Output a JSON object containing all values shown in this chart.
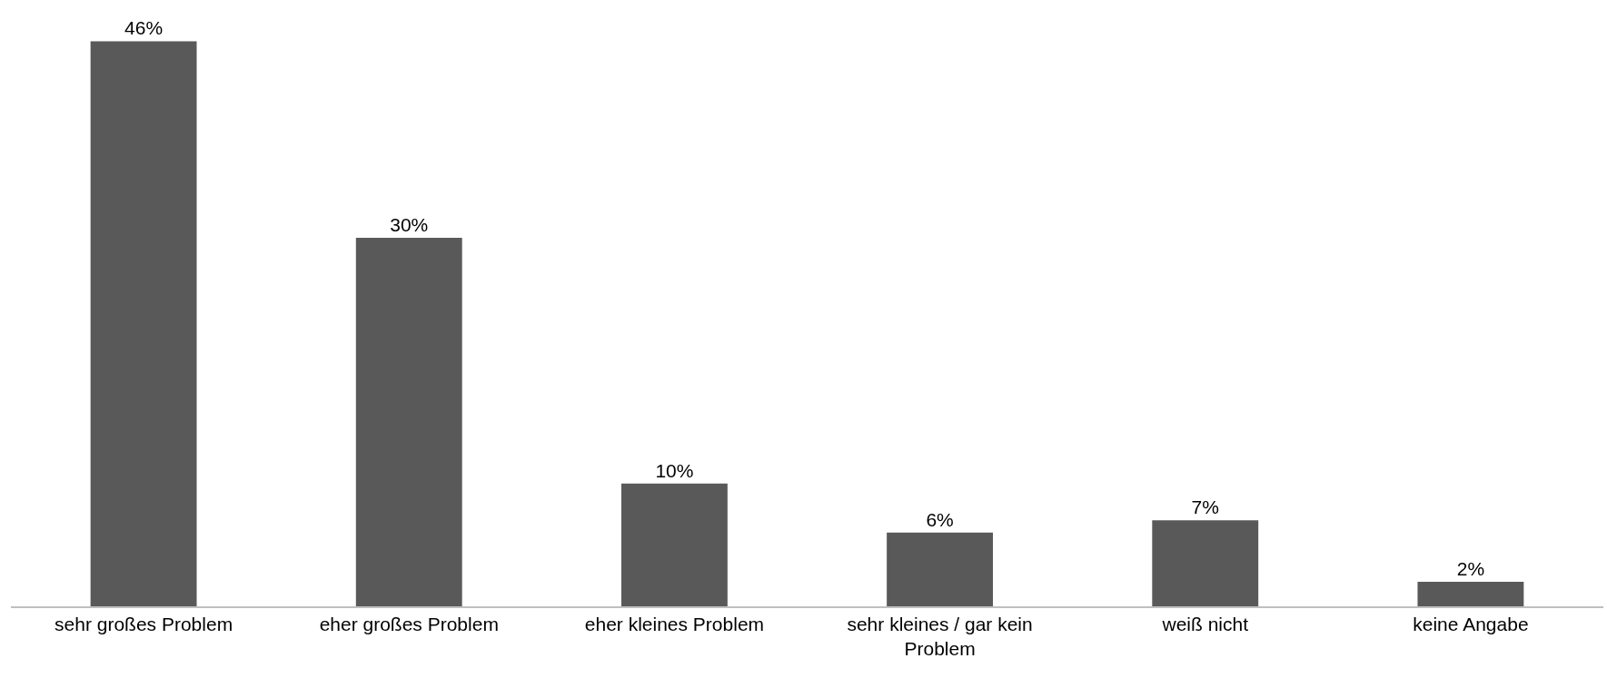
{
  "chart_data": {
    "type": "bar",
    "categories": [
      "sehr großes Problem",
      "eher großes Problem",
      "eher kleines Problem",
      "sehr kleines / gar kein Problem",
      "weiß nicht",
      "keine Angabe"
    ],
    "values": [
      46,
      30,
      10,
      6,
      7,
      2
    ],
    "value_labels": [
      "46%",
      "30%",
      "10%",
      "6%",
      "7%",
      "2%"
    ],
    "color": "#595959"
  }
}
